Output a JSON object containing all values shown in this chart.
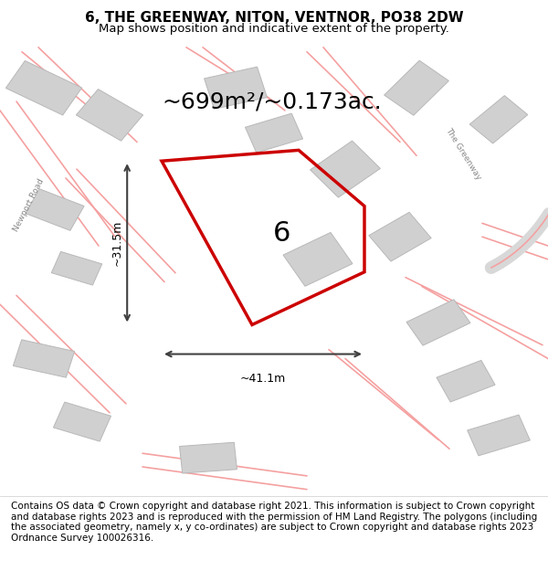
{
  "title": "6, THE GREENWAY, NITON, VENTNOR, PO38 2DW",
  "subtitle": "Map shows position and indicative extent of the property.",
  "area_text": "~699m²/~0.173ac.",
  "plot_number": "6",
  "width_label": "~41.1m",
  "height_label": "~31.5m",
  "footer": "Contains OS data © Crown copyright and database right 2021. This information is subject to Crown copyright and database rights 2023 and is reproduced with the permission of HM Land Registry. The polygons (including the associated geometry, namely x, y co-ordinates) are subject to Crown copyright and database rights 2023 Ordnance Survey 100026316.",
  "bg_color": "#f5f5f5",
  "map_bg": "#f0efef",
  "road_color": "#f5a0a0",
  "building_color": "#d8d8d8",
  "plot_color": "#cc0000",
  "road_label_left": "Newport Road",
  "road_label_right": "The Greenway",
  "title_fontsize": 11,
  "subtitle_fontsize": 9.5,
  "area_fontsize": 18,
  "plot_num_fontsize": 22,
  "footer_fontsize": 7.5
}
